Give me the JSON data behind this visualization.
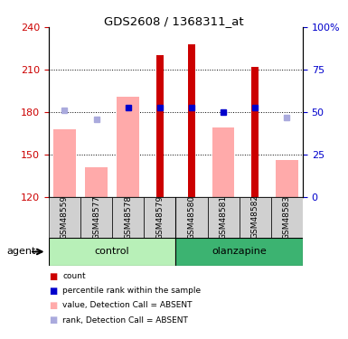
{
  "title": "GDS2608 / 1368311_at",
  "samples": [
    "GSM48559",
    "GSM48577",
    "GSM48578",
    "GSM48579",
    "GSM48580",
    "GSM48581",
    "GSM48582",
    "GSM48583"
  ],
  "red_bars": [
    null,
    null,
    null,
    220,
    228,
    null,
    212,
    null
  ],
  "pink_bars": [
    168,
    141,
    191,
    null,
    null,
    169,
    null,
    146
  ],
  "blue_squares_y": [
    null,
    null,
    183,
    183,
    183,
    180,
    183,
    null
  ],
  "lav_squares_y": [
    181,
    175,
    null,
    null,
    null,
    null,
    null,
    176
  ],
  "ylim_left": [
    120,
    240
  ],
  "ylim_right": [
    0,
    100
  ],
  "yticks_left": [
    120,
    150,
    180,
    210,
    240
  ],
  "yticks_right": [
    0,
    25,
    50,
    75,
    100
  ],
  "ytick_labels_right": [
    "0",
    "25",
    "50",
    "75",
    "100%"
  ],
  "red_bar_color": "#cc0000",
  "pink_bar_color": "#ffaaaa",
  "blue_sq_color": "#0000cc",
  "lav_sq_color": "#aaaadd",
  "left_tick_color": "#cc0000",
  "right_tick_color": "#0000cc",
  "baseline": 120,
  "control_color_light": "#b8f0b8",
  "control_color": "#90ee90",
  "olanzapine_color": "#3cb371",
  "gray_color": "#d0d0d0",
  "legend_labels": [
    "count",
    "percentile rank within the sample",
    "value, Detection Call = ABSENT",
    "rank, Detection Call = ABSENT"
  ],
  "legend_colors": [
    "#cc0000",
    "#0000cc",
    "#ffaaaa",
    "#aaaadd"
  ]
}
